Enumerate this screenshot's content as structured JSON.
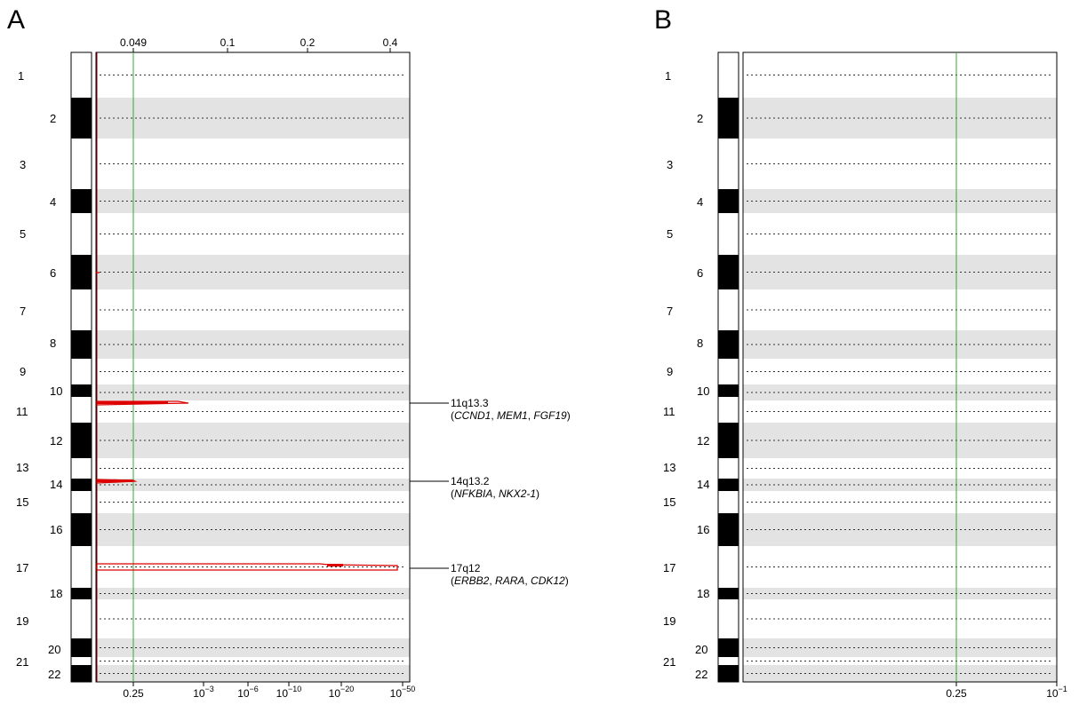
{
  "figure": {
    "panels": [
      {
        "letter": "A",
        "top_ticks": [
          {
            "text": "0.049",
            "pos": 0.049
          },
          {
            "text": "0.1",
            "pos": 0.1
          },
          {
            "text": "0.2",
            "pos": 0.2
          },
          {
            "text": "0.4",
            "pos": 0.4
          }
        ],
        "bottom_ticks": [
          {
            "base": "0.25",
            "exp": ""
          },
          {
            "base": "10",
            "exp": "−3"
          },
          {
            "base": "10",
            "exp": "−6"
          },
          {
            "base": "10",
            "exp": "−10"
          },
          {
            "base": "10",
            "exp": "−20"
          },
          {
            "base": "10",
            "exp": "−50"
          }
        ],
        "annotations": [
          {
            "band": "11q13.3",
            "genes": [
              "CCND1",
              "MEM1",
              "FGF19"
            ]
          },
          {
            "band": "14q13.2",
            "genes": [
              "NFKBIA",
              "NKX2-1"
            ]
          },
          {
            "band": "17q12",
            "genes": [
              "ERBB2",
              "RARA",
              "CDK12"
            ]
          }
        ]
      },
      {
        "letter": "B",
        "bottom_ticks": [
          {
            "base": "0.25",
            "exp": ""
          },
          {
            "base": "10",
            "exp": "−1"
          }
        ],
        "annotations": []
      }
    ]
  },
  "chart_data": [
    {
      "type": "line",
      "panel": "A",
      "chromosomes": [
        "1",
        "2",
        "3",
        "4",
        "5",
        "6",
        "7",
        "8",
        "9",
        "10",
        "11",
        "12",
        "13",
        "14",
        "15",
        "16",
        "17",
        "18",
        "19",
        "20",
        "21",
        "22"
      ],
      "x_scale": "q-value (log)",
      "x_ticks_bottom": [
        "0.25",
        "10^-3",
        "10^-6",
        "10^-10",
        "10^-20",
        "10^-50"
      ],
      "x_ticks_top": [
        0.049,
        0.1,
        0.2,
        0.4
      ],
      "threshold_q": 0.25,
      "threshold_color": "#33aa33",
      "series_color": "#dd0000",
      "peaks": [
        {
          "band": "11q13.3",
          "chromosome": "11",
          "q_value": "10^-4"
        },
        {
          "band": "14q13.2",
          "chromosome": "14",
          "q_value": "0.25"
        },
        {
          "band": "17q12",
          "chromosome": "17",
          "q_value": "10^-50"
        }
      ]
    },
    {
      "type": "line",
      "panel": "B",
      "chromosomes": [
        "1",
        "2",
        "3",
        "4",
        "5",
        "6",
        "7",
        "8",
        "9",
        "10",
        "11",
        "12",
        "13",
        "14",
        "15",
        "16",
        "17",
        "18",
        "19",
        "20",
        "21",
        "22"
      ],
      "x_scale": "q-value (log)",
      "x_ticks_bottom": [
        "0.25",
        "10^-1"
      ],
      "threshold_q": 0.25,
      "threshold_color": "#33aa33",
      "peaks": []
    }
  ]
}
